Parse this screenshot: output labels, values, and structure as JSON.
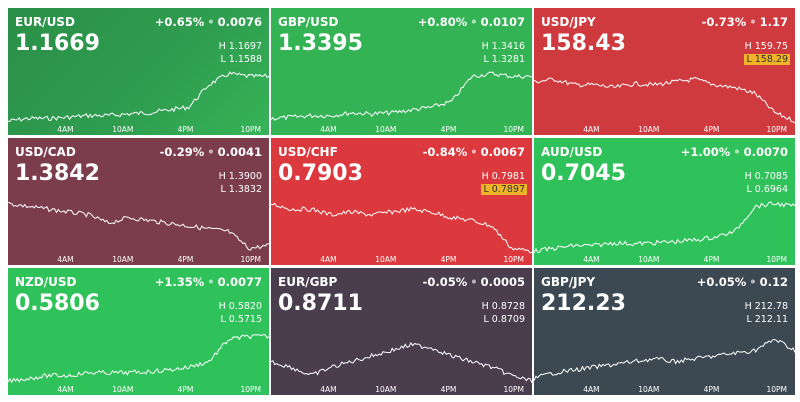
{
  "labels": {
    "high": "H",
    "low": "L"
  },
  "time_labels": [
    "4AM",
    "10AM",
    "4PM",
    "10PM"
  ],
  "tiles": [
    {
      "pair": "EUR/USD",
      "change": "+0.65%",
      "diff": "0.0076",
      "price": "1.1669",
      "high": "1.1697",
      "low": "1.1588",
      "color": "#2f9e4f"
    },
    {
      "pair": "GBP/USD",
      "change": "+0.80%",
      "diff": "0.0107",
      "price": "1.3395",
      "high": "1.3416",
      "low": "1.3281",
      "color": "#33b354"
    },
    {
      "pair": "USD/JPY",
      "change": "-0.73%",
      "diff": "1.17",
      "price": "158.43",
      "high": "159.75",
      "low": "158.29",
      "color": "#cf3a3f",
      "low_highlight": true
    },
    {
      "pair": "USD/CAD",
      "change": "-0.29%",
      "diff": "0.0041",
      "price": "1.3842",
      "high": "1.3900",
      "low": "1.3832",
      "color": "#7b3c4b"
    },
    {
      "pair": "USD/CHF",
      "change": "-0.84%",
      "diff": "0.0067",
      "price": "0.7903",
      "high": "0.7981",
      "low": "0.7897",
      "color": "#dc393e",
      "low_highlight": true
    },
    {
      "pair": "AUD/USD",
      "change": "+1.00%",
      "diff": "0.0070",
      "price": "0.7045",
      "high": "0.7085",
      "low": "0.6964",
      "color": "#30c25a"
    },
    {
      "pair": "NZD/USD",
      "change": "+1.35%",
      "diff": "0.0077",
      "price": "0.5806",
      "high": "0.5820",
      "low": "0.5715",
      "color": "#30c25a"
    },
    {
      "pair": "EUR/GBP",
      "change": "-0.05%",
      "diff": "0.0005",
      "price": "0.8711",
      "high": "0.8728",
      "low": "0.8709",
      "color": "#4a3d4e"
    },
    {
      "pair": "GBP/JPY",
      "change": "+0.05%",
      "diff": "0.12",
      "price": "212.23",
      "high": "212.78",
      "low": "212.11",
      "color": "#3c4952"
    }
  ]
}
